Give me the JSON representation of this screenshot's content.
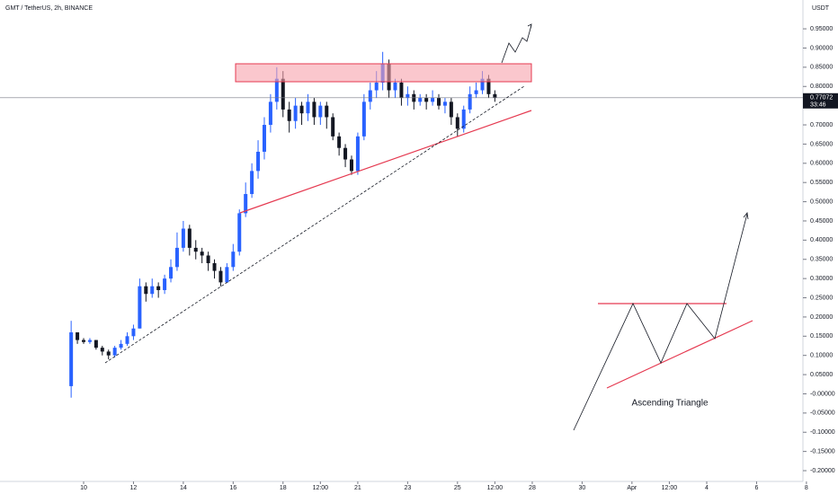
{
  "chart_data": {
    "type": "candlestick",
    "title": "GMT / TetherUS, 2h, BINANCE",
    "y_unit": "USDT",
    "x": [
      9.5,
      9.75,
      10,
      10.25,
      10.5,
      10.75,
      11,
      11.25,
      11.5,
      11.75,
      12,
      12.25,
      12.5,
      12.75,
      13,
      13.25,
      13.5,
      13.75,
      14,
      14.25,
      14.5,
      14.75,
      15,
      15.25,
      15.5,
      15.75,
      16,
      16.25,
      16.5,
      16.75,
      17,
      17.25,
      17.5,
      17.75,
      18,
      18.25,
      18.5,
      18.75,
      19,
      19.25,
      19.5,
      19.75,
      20,
      20.25,
      20.5,
      20.75,
      21,
      21.25,
      21.5,
      21.75,
      22,
      22.25,
      22.5,
      22.75,
      23,
      23.25,
      23.5,
      23.75,
      24,
      24.25,
      24.5,
      24.75,
      25,
      25.25,
      25.5,
      25.75,
      26,
      26.25,
      26.5
    ],
    "open": [
      0.02,
      0.16,
      0.14,
      0.135,
      0.14,
      0.12,
      0.11,
      0.1,
      0.12,
      0.13,
      0.15,
      0.17,
      0.28,
      0.26,
      0.28,
      0.27,
      0.3,
      0.33,
      0.38,
      0.43,
      0.38,
      0.37,
      0.36,
      0.34,
      0.32,
      0.29,
      0.33,
      0.37,
      0.47,
      0.52,
      0.58,
      0.63,
      0.7,
      0.76,
      0.82,
      0.74,
      0.71,
      0.75,
      0.73,
      0.76,
      0.72,
      0.75,
      0.72,
      0.67,
      0.64,
      0.61,
      0.58,
      0.67,
      0.76,
      0.79,
      0.81,
      0.86,
      0.79,
      0.81,
      0.77,
      0.78,
      0.76,
      0.77,
      0.76,
      0.77,
      0.75,
      0.76,
      0.72,
      0.69,
      0.74,
      0.78,
      0.79,
      0.82,
      0.78
    ],
    "high": [
      0.19,
      0.16,
      0.145,
      0.145,
      0.14,
      0.125,
      0.115,
      0.125,
      0.14,
      0.16,
      0.18,
      0.3,
      0.29,
      0.3,
      0.29,
      0.31,
      0.35,
      0.42,
      0.45,
      0.44,
      0.4,
      0.38,
      0.37,
      0.35,
      0.33,
      0.34,
      0.39,
      0.48,
      0.55,
      0.6,
      0.66,
      0.72,
      0.78,
      0.85,
      0.84,
      0.76,
      0.77,
      0.76,
      0.78,
      0.77,
      0.76,
      0.76,
      0.73,
      0.68,
      0.65,
      0.62,
      0.68,
      0.78,
      0.81,
      0.84,
      0.89,
      0.87,
      0.82,
      0.82,
      0.8,
      0.79,
      0.78,
      0.78,
      0.79,
      0.78,
      0.77,
      0.77,
      0.73,
      0.75,
      0.8,
      0.81,
      0.84,
      0.83,
      0.79
    ],
    "low": [
      -0.01,
      0.13,
      0.13,
      0.13,
      0.115,
      0.1,
      0.09,
      0.095,
      0.115,
      0.125,
      0.14,
      0.17,
      0.24,
      0.25,
      0.25,
      0.26,
      0.29,
      0.32,
      0.37,
      0.36,
      0.35,
      0.34,
      0.32,
      0.3,
      0.28,
      0.29,
      0.32,
      0.36,
      0.46,
      0.51,
      0.56,
      0.61,
      0.68,
      0.74,
      0.72,
      0.68,
      0.69,
      0.7,
      0.71,
      0.7,
      0.7,
      0.69,
      0.66,
      0.62,
      0.59,
      0.57,
      0.57,
      0.66,
      0.74,
      0.77,
      0.79,
      0.77,
      0.77,
      0.75,
      0.75,
      0.74,
      0.75,
      0.74,
      0.75,
      0.74,
      0.73,
      0.7,
      0.67,
      0.68,
      0.73,
      0.77,
      0.78,
      0.77,
      0.76
    ],
    "close": [
      0.16,
      0.14,
      0.135,
      0.14,
      0.12,
      0.11,
      0.1,
      0.12,
      0.13,
      0.15,
      0.17,
      0.28,
      0.26,
      0.28,
      0.27,
      0.3,
      0.33,
      0.38,
      0.43,
      0.38,
      0.37,
      0.36,
      0.34,
      0.32,
      0.29,
      0.33,
      0.37,
      0.47,
      0.52,
      0.58,
      0.63,
      0.7,
      0.76,
      0.82,
      0.74,
      0.71,
      0.75,
      0.73,
      0.76,
      0.72,
      0.75,
      0.72,
      0.67,
      0.64,
      0.61,
      0.58,
      0.67,
      0.76,
      0.79,
      0.81,
      0.86,
      0.79,
      0.81,
      0.77,
      0.78,
      0.76,
      0.77,
      0.76,
      0.77,
      0.75,
      0.76,
      0.72,
      0.69,
      0.74,
      0.78,
      0.79,
      0.82,
      0.78,
      0.77
    ],
    "up_color": "#2962ff",
    "down_color": "#131722",
    "xlim": [
      6.645,
      38.86
    ],
    "ylim": [
      -0.228,
      1.025
    ],
    "xticks": [
      10,
      12,
      14,
      16,
      18,
      {
        "value": 19.5,
        "label": "12:00"
      },
      21,
      23,
      25,
      {
        "value": 26.5,
        "label": "12:00"
      },
      28,
      30,
      {
        "value": 32,
        "label": "Apr"
      },
      {
        "value": 33.5,
        "label": "12:00"
      },
      {
        "value": 35,
        "label": "4"
      },
      {
        "value": 37,
        "label": "6"
      },
      {
        "value": 39,
        "label": "8"
      }
    ],
    "yticks": [
      {
        "value": 0.95,
        "label": "0.95000"
      },
      {
        "value": 0.9,
        "label": "0.90000"
      },
      {
        "value": 0.85,
        "label": "0.85000"
      },
      {
        "value": 0.8,
        "label": "0.80000"
      },
      {
        "value": 0.7,
        "label": "0.70000"
      },
      {
        "value": 0.65,
        "label": "0.65000"
      },
      {
        "value": 0.6,
        "label": "0.60000"
      },
      {
        "value": 0.55,
        "label": "0.55000"
      },
      {
        "value": 0.5,
        "label": "0.50000"
      },
      {
        "value": 0.45,
        "label": "0.45000"
      },
      {
        "value": 0.4,
        "label": "0.40000"
      },
      {
        "value": 0.35,
        "label": "0.35000"
      },
      {
        "value": 0.3,
        "label": "0.30000"
      },
      {
        "value": 0.25,
        "label": "0.25000"
      },
      {
        "value": 0.2,
        "label": "0.20000"
      },
      {
        "value": 0.15,
        "label": "0.15000"
      },
      {
        "value": 0.1,
        "label": "0.10000"
      },
      {
        "value": 0.05,
        "label": "0.05000"
      },
      {
        "value": 0,
        "label": "-0.00000"
      },
      {
        "value": -0.05,
        "label": "-0.05000"
      },
      {
        "value": -0.1,
        "label": "-0.10000"
      },
      {
        "value": -0.15,
        "label": "-0.15000"
      },
      {
        "value": -0.2,
        "label": "-0.20000"
      }
    ],
    "last_price": 0.77072,
    "countdown": "33:46",
    "annotation": "Ascending Triangle"
  }
}
